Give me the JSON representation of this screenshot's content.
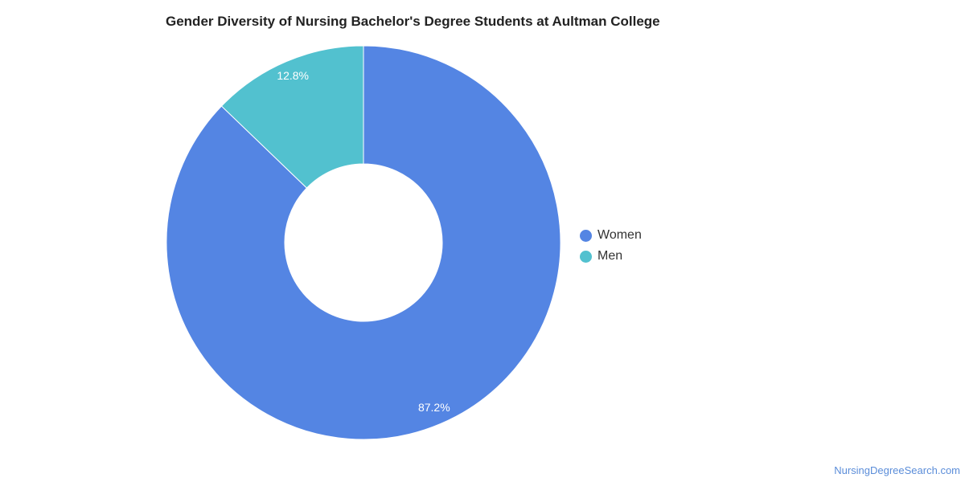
{
  "chart_data": {
    "type": "pie",
    "title": "Gender Diversity of Nursing Bachelor's Degree Students at Aultman College",
    "categories": [
      "Women",
      "Men"
    ],
    "values": [
      87.2,
      12.8
    ],
    "labels": [
      "87.2%",
      "12.8%"
    ],
    "colors": [
      "#5485e3",
      "#52c1cf"
    ],
    "donut": true,
    "legend_position": "right"
  },
  "watermark": "NursingDegreeSearch.com"
}
